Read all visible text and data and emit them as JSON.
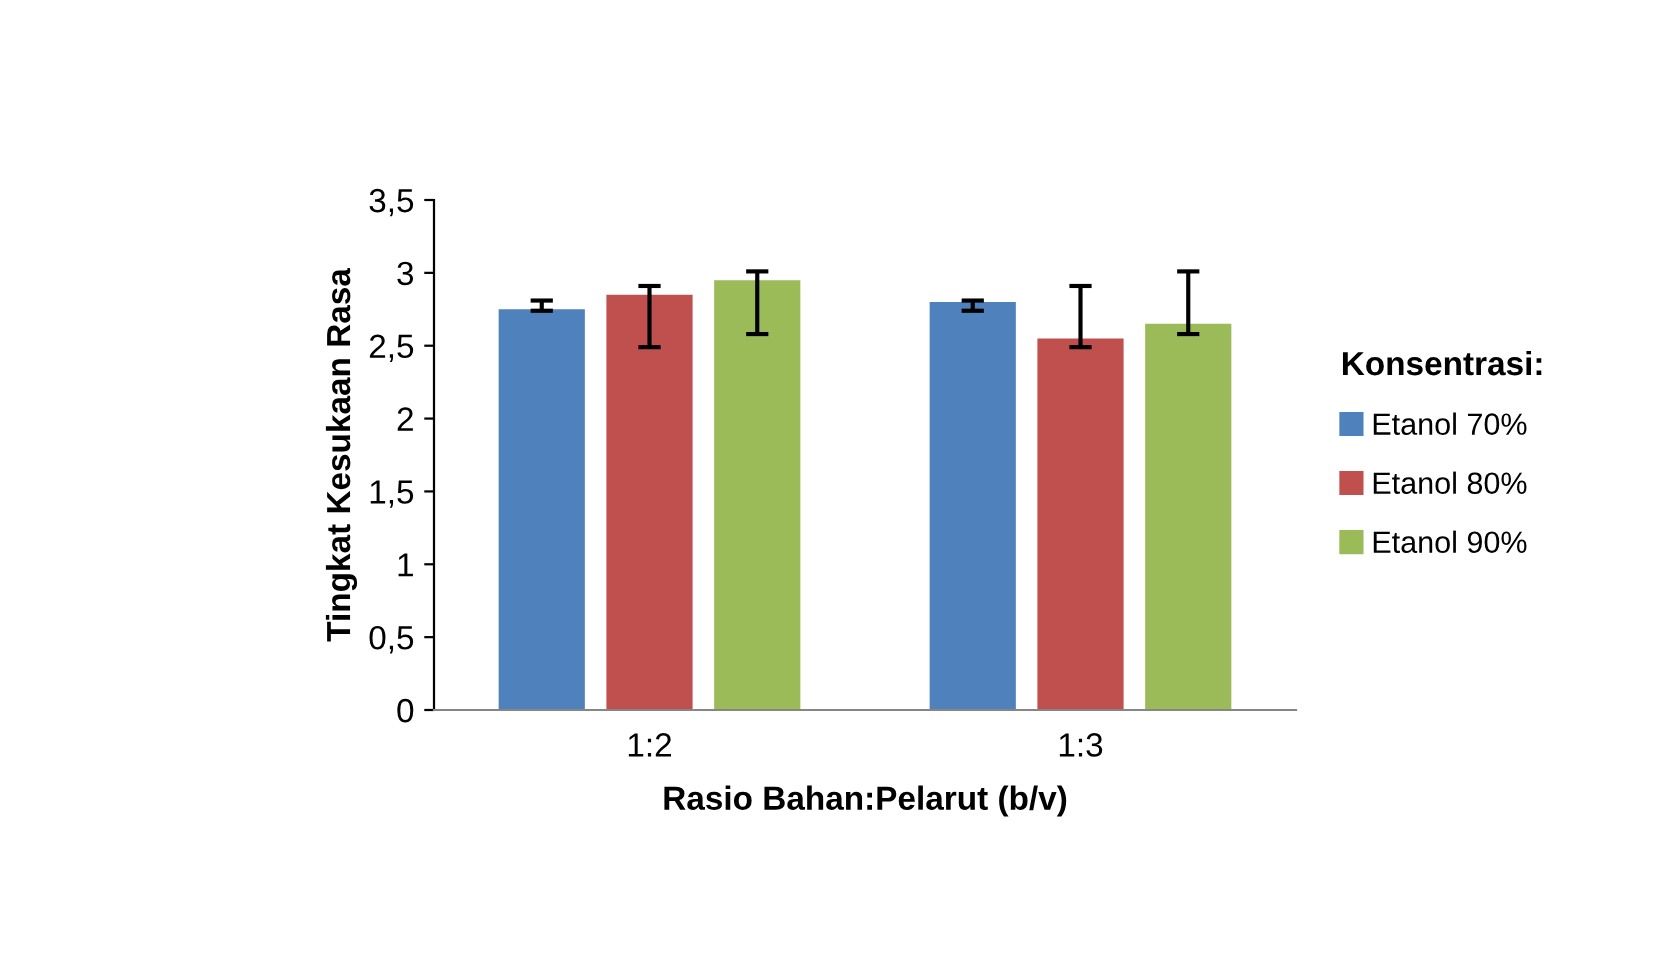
{
  "chart_data": {
    "type": "bar",
    "xlabel": "Rasio Bahan:Pelarut (b/v)",
    "ylabel": "Tingkat Kesukaan Rasa",
    "legend_title": "Konsentrasi:",
    "legend": "right",
    "categories": [
      "1:2",
      "1:3"
    ],
    "series": [
      {
        "name": "Etanol 70%",
        "color": "#4f81bd",
        "values": [
          2.75,
          2.8
        ],
        "errors": [
          [
            2.74,
            2.81
          ],
          [
            2.74,
            2.81
          ]
        ]
      },
      {
        "name": "Etanol 80%",
        "color": "#c0504d",
        "values": [
          2.85,
          2.55
        ],
        "errors": [
          [
            2.49,
            2.91
          ],
          [
            2.49,
            2.91
          ]
        ]
      },
      {
        "name": "Etanol 90%",
        "color": "#9bbb59",
        "values": [
          2.95,
          2.65
        ],
        "errors": [
          [
            2.58,
            3.01
          ],
          [
            2.58,
            3.01
          ]
        ]
      }
    ],
    "ylim": [
      0,
      3.5
    ],
    "yticks": [
      0,
      {
        "value": 0.5,
        "label": "0,5"
      },
      1,
      {
        "value": 1.5,
        "label": "1,5"
      },
      2,
      {
        "value": 2.5,
        "label": "2,5"
      },
      3,
      {
        "value": 3.5,
        "label": "3,5"
      }
    ],
    "grid": false
  }
}
